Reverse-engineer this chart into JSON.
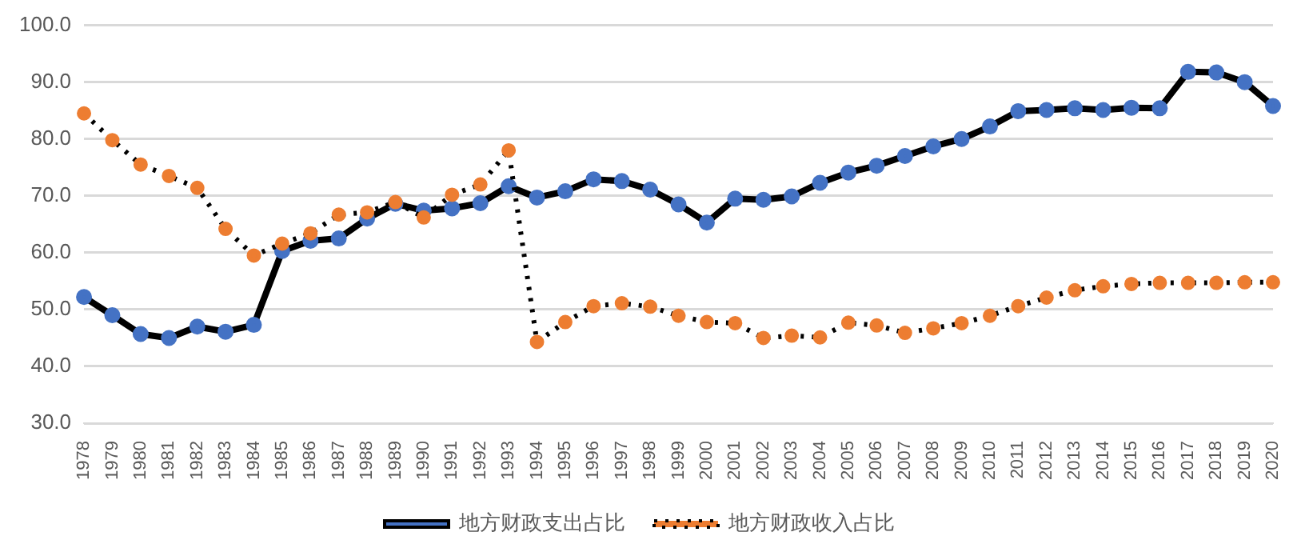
{
  "chart_data": {
    "type": "line",
    "categories": [
      "1978",
      "1979",
      "1980",
      "1981",
      "1982",
      "1983",
      "1984",
      "1985",
      "1986",
      "1987",
      "1988",
      "1989",
      "1990",
      "1991",
      "1992",
      "1993",
      "1994",
      "1995",
      "1996",
      "1997",
      "1998",
      "1999",
      "2000",
      "2001",
      "2002",
      "2003",
      "2004",
      "2005",
      "2006",
      "2007",
      "2008",
      "2009",
      "2010",
      "2011",
      "2012",
      "2013",
      "2014",
      "2015",
      "2016",
      "2017",
      "2018",
      "2019",
      "2020"
    ],
    "series": [
      {
        "name": "地方财政支出占比",
        "color": "#4472c4",
        "line_style": "solid",
        "values": [
          52.2,
          49.0,
          45.7,
          45.0,
          47.0,
          46.1,
          47.3,
          60.3,
          62.1,
          62.5,
          66.0,
          68.6,
          67.4,
          67.8,
          68.7,
          71.7,
          69.7,
          70.8,
          72.9,
          72.6,
          71.1,
          68.5,
          65.3,
          69.5,
          69.3,
          69.9,
          72.3,
          74.1,
          75.3,
          77.0,
          78.7,
          80.0,
          82.2,
          84.9,
          85.1,
          85.4,
          85.1,
          85.5,
          85.4,
          91.8,
          91.7,
          90.0,
          85.8
        ]
      },
      {
        "name": "地方财政收入占比",
        "color": "#ed7d31",
        "line_style": "dotted",
        "values": [
          84.5,
          79.8,
          75.5,
          73.5,
          71.4,
          64.2,
          59.5,
          61.6,
          63.4,
          66.7,
          67.1,
          68.9,
          66.2,
          70.2,
          72.0,
          78.0,
          44.3,
          47.8,
          50.6,
          51.1,
          50.5,
          48.9,
          47.8,
          47.6,
          45.0,
          45.4,
          45.1,
          47.7,
          47.2,
          45.9,
          46.7,
          47.6,
          48.9,
          50.6,
          52.1,
          53.4,
          54.1,
          54.5,
          54.7,
          54.7,
          54.7,
          54.8,
          54.8
        ]
      }
    ],
    "ylim": [
      30,
      100
    ],
    "yticks": [
      {
        "value": 30,
        "label": "30.0"
      },
      {
        "value": 40,
        "label": "40.0"
      },
      {
        "value": 50,
        "label": "50.0"
      },
      {
        "value": 60,
        "label": "60.0"
      },
      {
        "value": 70,
        "label": "70.0"
      },
      {
        "value": 80,
        "label": "80.0"
      },
      {
        "value": 90,
        "label": "90.0"
      },
      {
        "value": 100,
        "label": "100.0"
      }
    ],
    "grid": "y",
    "legend": "bottom",
    "marker": "circle"
  }
}
